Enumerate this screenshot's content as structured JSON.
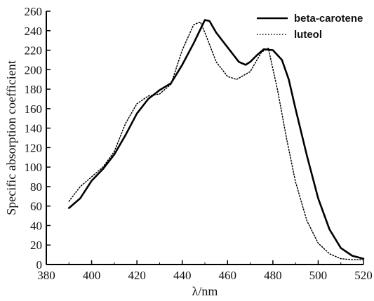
{
  "chart_data": {
    "type": "line",
    "title": "",
    "xlabel": "λ/nm",
    "ylabel": "Specific absorption coefficient",
    "xlim": [
      380,
      520
    ],
    "ylim": [
      0,
      260
    ],
    "xticks": [
      380,
      400,
      420,
      440,
      460,
      480,
      500,
      520
    ],
    "yticks": [
      0,
      20,
      40,
      60,
      80,
      100,
      120,
      140,
      160,
      180,
      200,
      220,
      240,
      260
    ],
    "grid": false,
    "legend_position": "top-right",
    "series": [
      {
        "name": "beta-carotene",
        "style": "solid",
        "color": "#000000",
        "points": [
          [
            390,
            58
          ],
          [
            395,
            68
          ],
          [
            400,
            86
          ],
          [
            405,
            98
          ],
          [
            410,
            113
          ],
          [
            415,
            133
          ],
          [
            420,
            155
          ],
          [
            425,
            170
          ],
          [
            430,
            179
          ],
          [
            435,
            186
          ],
          [
            440,
            205
          ],
          [
            445,
            227
          ],
          [
            450,
            251
          ],
          [
            452,
            250
          ],
          [
            455,
            238
          ],
          [
            460,
            223
          ],
          [
            465,
            208
          ],
          [
            468,
            205
          ],
          [
            470,
            208
          ],
          [
            473,
            215
          ],
          [
            476,
            221
          ],
          [
            480,
            220
          ],
          [
            484,
            210
          ],
          [
            487,
            190
          ],
          [
            490,
            160
          ],
          [
            495,
            112
          ],
          [
            500,
            68
          ],
          [
            505,
            36
          ],
          [
            510,
            17
          ],
          [
            515,
            9
          ],
          [
            520,
            6
          ]
        ]
      },
      {
        "name": "luteol",
        "style": "dotted",
        "color": "#000000",
        "points": [
          [
            390,
            65
          ],
          [
            395,
            80
          ],
          [
            400,
            90
          ],
          [
            405,
            100
          ],
          [
            410,
            116
          ],
          [
            415,
            145
          ],
          [
            420,
            165
          ],
          [
            425,
            173
          ],
          [
            430,
            175
          ],
          [
            435,
            185
          ],
          [
            440,
            220
          ],
          [
            445,
            246
          ],
          [
            448,
            249
          ],
          [
            450,
            238
          ],
          [
            455,
            208
          ],
          [
            460,
            193
          ],
          [
            464,
            190
          ],
          [
            470,
            198
          ],
          [
            475,
            218
          ],
          [
            478,
            222
          ],
          [
            482,
            180
          ],
          [
            486,
            130
          ],
          [
            490,
            85
          ],
          [
            495,
            45
          ],
          [
            500,
            22
          ],
          [
            505,
            11
          ],
          [
            510,
            6
          ],
          [
            515,
            5
          ],
          [
            520,
            5
          ]
        ]
      }
    ]
  }
}
